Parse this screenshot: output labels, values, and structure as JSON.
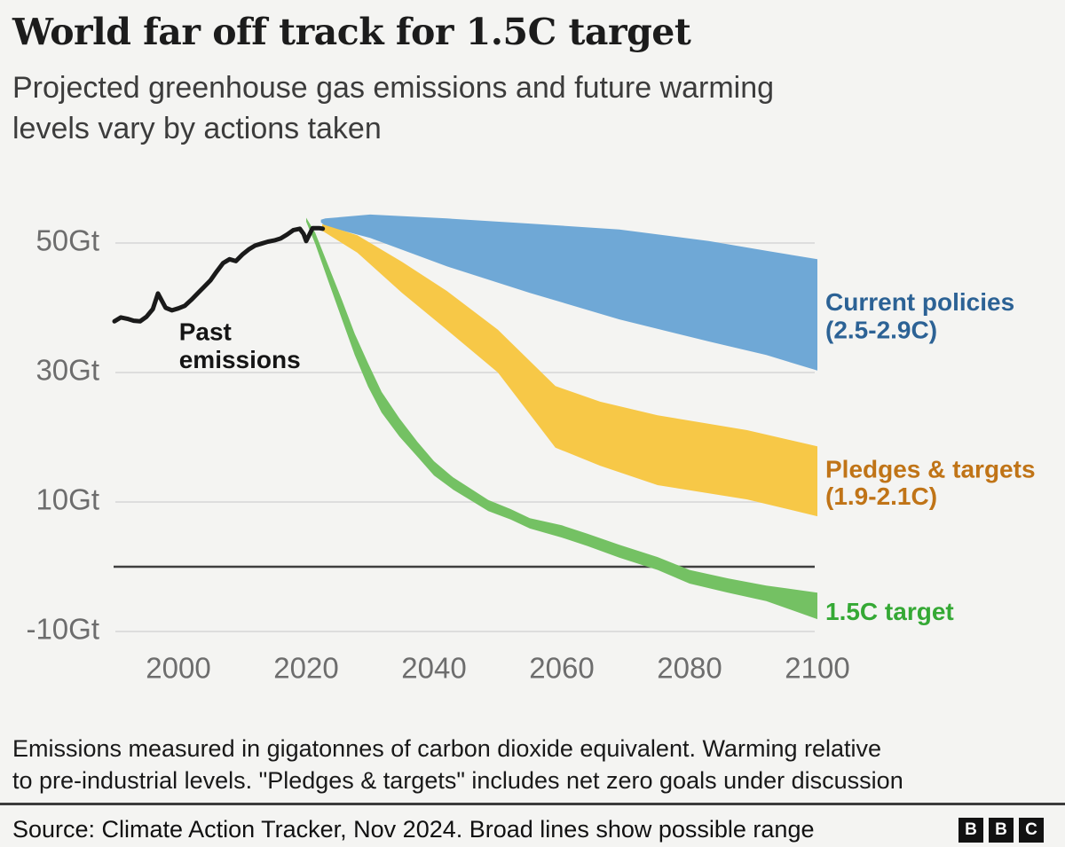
{
  "header": {
    "title": "World far off track for 1.5C target",
    "subtitle_line1": "Projected greenhouse gas emissions and future warming",
    "subtitle_line2": "levels vary by actions taken"
  },
  "chart_data": {
    "type": "area",
    "title": "Projected greenhouse gas emissions and future warming levels vary by actions taken",
    "xlabel": "",
    "ylabel": "Gt (gigatonnes CO2 equivalent)",
    "x_range": [
      1989,
      2101
    ],
    "y_range": [
      -14,
      57
    ],
    "grid": true,
    "legend_position": "right-of-band-ends",
    "style": {
      "grid_color": "#dddddd",
      "zero_line_color": "#3f3f3f",
      "axis_text_color": "#6d6d6d",
      "background": "#f4f4f2"
    },
    "y_ticks": [
      {
        "gt": 50,
        "label": "50Gt"
      },
      {
        "gt": 30,
        "label": "30Gt"
      },
      {
        "gt": 10,
        "label": "10Gt"
      },
      {
        "gt": -10,
        "label": "-10Gt"
      }
    ],
    "x_ticks": [
      {
        "year": 2000,
        "label": "2000"
      },
      {
        "year": 2020,
        "label": "2020"
      },
      {
        "year": 2040,
        "label": "2040"
      },
      {
        "year": 2060,
        "label": "2060"
      },
      {
        "year": 2080,
        "label": "2080"
      },
      {
        "year": 2100,
        "label": "2100"
      }
    ],
    "zero_line": {
      "gt": 0
    },
    "annotation": {
      "x_year": 2000.1,
      "lines": [
        {
          "text": "Past",
          "gt": 36.0
        },
        {
          "text": "emissions",
          "gt": 31.7
        }
      ]
    },
    "past_emissions": {
      "name": "Past emissions",
      "color": "#1a1a1a",
      "points": [
        [
          1990,
          37.9
        ],
        [
          1991,
          38.5
        ],
        [
          1992,
          38.3
        ],
        [
          1993,
          38.0
        ],
        [
          1994,
          37.9
        ],
        [
          1995,
          38.6
        ],
        [
          1996,
          39.8
        ],
        [
          1996.8,
          42.2
        ],
        [
          1998,
          40.0
        ],
        [
          1999,
          39.6
        ],
        [
          2000,
          39.9
        ],
        [
          2001,
          40.3
        ],
        [
          2002,
          41.2
        ],
        [
          2003,
          42.2
        ],
        [
          2004,
          43.2
        ],
        [
          2005,
          44.2
        ],
        [
          2006,
          45.6
        ],
        [
          2007,
          46.9
        ],
        [
          2008,
          47.5
        ],
        [
          2009,
          47.2
        ],
        [
          2010,
          48.2
        ],
        [
          2011,
          49.0
        ],
        [
          2012,
          49.6
        ],
        [
          2013,
          49.9
        ],
        [
          2014,
          50.2
        ],
        [
          2015,
          50.4
        ],
        [
          2016,
          50.7
        ],
        [
          2017,
          51.3
        ],
        [
          2018,
          52.0
        ],
        [
          2019,
          52.2
        ],
        [
          2019.6,
          51.4
        ],
        [
          2020,
          50.3
        ],
        [
          2021,
          52.3
        ],
        [
          2022,
          52.3
        ],
        [
          2022.6,
          52.2
        ]
      ]
    },
    "bands": [
      {
        "id": "current-policies",
        "label": "Current policies",
        "sublabel": "(2.5-2.9C)",
        "warming_range_c": [
          2.5,
          2.9
        ],
        "color": "#6fa8d6",
        "label_color": "#2c6295",
        "label_gt": [
          40.6,
          36.3
        ],
        "points": [
          [
            2022.3,
            53.2,
            53.6
          ],
          [
            2023,
            52.6,
            53.8
          ],
          [
            2030,
            50.8,
            54.4
          ],
          [
            2042,
            46.4,
            53.8
          ],
          [
            2055,
            42.3,
            53.0
          ],
          [
            2069,
            38.2,
            52.1
          ],
          [
            2083,
            34.8,
            50.3
          ],
          [
            2092,
            32.7,
            48.8
          ],
          [
            2100,
            30.3,
            47.5
          ]
        ]
      },
      {
        "id": "pledges-targets",
        "label": "Pledges & targets",
        "sublabel": "(1.9-2.1C)",
        "warming_range_c": [
          1.9,
          2.1
        ],
        "color": "#f7c847",
        "label_color": "#c07417",
        "label_gt": [
          14.8,
          10.6
        ],
        "points": [
          [
            2022.5,
            51.9,
            52.9
          ],
          [
            2028,
            48.5,
            51.2
          ],
          [
            2035,
            42.3,
            47.1
          ],
          [
            2042,
            36.6,
            42.6
          ],
          [
            2050,
            30.0,
            36.6
          ],
          [
            2059,
            18.4,
            27.9
          ],
          [
            2066,
            15.6,
            25.5
          ],
          [
            2075,
            12.6,
            23.4
          ],
          [
            2089,
            10.4,
            21.1
          ],
          [
            2100,
            7.8,
            18.6
          ]
        ]
      },
      {
        "id": "target-1-5c",
        "label": "1.5C target",
        "sublabel": "",
        "warming_range_c": [
          1.5,
          1.5
        ],
        "color": "#74c163",
        "label_color": "#35a935",
        "label_gt": [
          -7.2
        ],
        "points": [
          [
            2020,
            53.3,
            53.9
          ],
          [
            2021.4,
            49.9,
            51.6
          ],
          [
            2023.5,
            44.0,
            46.4
          ],
          [
            2025.6,
            38.2,
            41.2
          ],
          [
            2027.6,
            32.7,
            36.0
          ],
          [
            2029.7,
            27.8,
            31.4
          ],
          [
            2031.8,
            23.8,
            27.0
          ],
          [
            2034.6,
            20.1,
            22.9
          ],
          [
            2037.4,
            17.0,
            19.3
          ],
          [
            2040,
            14.1,
            16.3
          ],
          [
            2043,
            11.9,
            13.8
          ],
          [
            2046,
            10.1,
            11.9
          ],
          [
            2048.5,
            8.6,
            10.3
          ],
          [
            2052,
            7.3,
            8.9
          ],
          [
            2055,
            5.9,
            7.5
          ],
          [
            2060,
            4.5,
            6.4
          ],
          [
            2064,
            3.2,
            5.1
          ],
          [
            2069,
            1.4,
            3.4
          ],
          [
            2075,
            -0.5,
            1.5
          ],
          [
            2080,
            -2.6,
            -0.5
          ],
          [
            2086,
            -4.0,
            -1.8
          ],
          [
            2092,
            -5.3,
            -2.9
          ],
          [
            2100,
            -8.1,
            -4.0
          ]
        ]
      }
    ]
  },
  "footnote": {
    "line1": "Emissions measured in gigatonnes of carbon dioxide equivalent. Warming relative",
    "line2": "to pre-industrial levels. \"Pledges & targets\" includes net zero goals under discussion"
  },
  "source": {
    "text": "Source: Climate Action Tracker, Nov 2024. Broad lines show possible range",
    "logo": [
      "B",
      "B",
      "C"
    ]
  }
}
